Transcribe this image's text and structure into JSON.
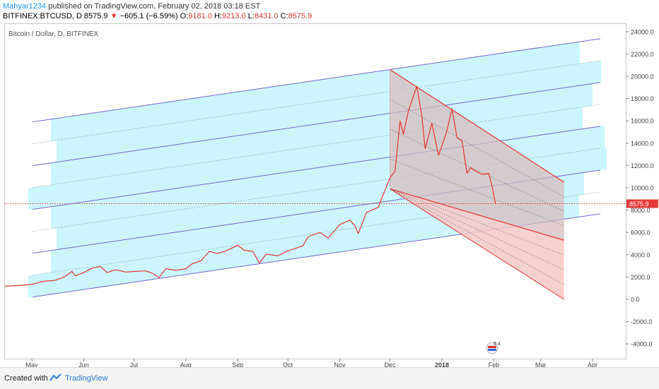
{
  "header": {
    "author": "Mahyar1234",
    "published": " published on TradingView.com, February 02, 2018 03:18 EST",
    "symbol": "BITFINEX:BTCUSD, D",
    "last": "8575.9",
    "arrow": "▼",
    "change": "−605.1 (−6.59%)",
    "o_label": "O:",
    "o": "9181.0",
    "h_label": "H:",
    "h": "9213.0",
    "l_label": "L:",
    "l": "8431.0",
    "c_label": "C:",
    "c": "8575.9"
  },
  "pane_title": "Bitcoin / Dollar, D, BITFINEX",
  "footer": {
    "created_with": "Created with",
    "brand": "TradingView"
  },
  "event_badge": "9 4",
  "colors": {
    "price": "#e53935",
    "up_channel_fill": "#ccf6fb",
    "up_channel_line": "#6a5acd",
    "down_channel_fill": "#f5c7c7",
    "down_channel_line": "#e53935",
    "price_line_label_bg": "#e53935"
  },
  "chart_data": {
    "type": "line",
    "series": [
      {
        "values_by_date": [
          [
            "2017-04-15",
            1180
          ],
          [
            "2017-04-25",
            1260
          ],
          [
            "2017-05-01",
            1350
          ],
          [
            "2017-05-08",
            1620
          ],
          [
            "2017-05-15",
            1700
          ],
          [
            "2017-05-20",
            1980
          ],
          [
            "2017-05-25",
            2500
          ],
          [
            "2017-05-27",
            2100
          ],
          [
            "2017-06-01",
            2400
          ],
          [
            "2017-06-06",
            2800
          ],
          [
            "2017-06-11",
            2950
          ],
          [
            "2017-06-15",
            2400
          ],
          [
            "2017-06-20",
            2650
          ],
          [
            "2017-06-26",
            2450
          ],
          [
            "2017-07-01",
            2500
          ],
          [
            "2017-07-08",
            2550
          ],
          [
            "2017-07-12",
            2350
          ],
          [
            "2017-07-16",
            1950
          ],
          [
            "2017-07-20",
            2750
          ],
          [
            "2017-07-26",
            2600
          ],
          [
            "2017-08-01",
            2750
          ],
          [
            "2017-08-05",
            3200
          ],
          [
            "2017-08-10",
            3450
          ],
          [
            "2017-08-15",
            4300
          ],
          [
            "2017-08-20",
            4100
          ],
          [
            "2017-08-25",
            4350
          ],
          [
            "2017-09-01",
            4850
          ],
          [
            "2017-09-05",
            4400
          ],
          [
            "2017-09-10",
            4300
          ],
          [
            "2017-09-14",
            3250
          ],
          [
            "2017-09-18",
            4050
          ],
          [
            "2017-09-25",
            3900
          ],
          [
            "2017-10-01",
            4350
          ],
          [
            "2017-10-10",
            4800
          ],
          [
            "2017-10-13",
            5600
          ],
          [
            "2017-10-20",
            6000
          ],
          [
            "2017-10-25",
            5500
          ],
          [
            "2017-11-01",
            6700
          ],
          [
            "2017-11-07",
            7100
          ],
          [
            "2017-11-10",
            6600
          ],
          [
            "2017-11-12",
            5900
          ],
          [
            "2017-11-17",
            7800
          ],
          [
            "2017-11-24",
            8250
          ],
          [
            "2017-11-28",
            9800
          ],
          [
            "2017-12-01",
            10900
          ],
          [
            "2017-12-04",
            11500
          ],
          [
            "2017-12-07",
            16000
          ],
          [
            "2017-12-09",
            14800
          ],
          [
            "2017-12-12",
            16900
          ],
          [
            "2017-12-17",
            19100
          ],
          [
            "2017-12-20",
            16500
          ],
          [
            "2017-12-22",
            13500
          ],
          [
            "2017-12-26",
            15800
          ],
          [
            "2017-12-30",
            12900
          ],
          [
            "2018-01-04",
            15100
          ],
          [
            "2018-01-07",
            17100
          ],
          [
            "2018-01-10",
            14500
          ],
          [
            "2018-01-13",
            14200
          ],
          [
            "2018-01-16",
            11300
          ],
          [
            "2018-01-18",
            11800
          ],
          [
            "2018-01-21",
            11500
          ],
          [
            "2018-01-25",
            11200
          ],
          [
            "2018-01-29",
            11300
          ],
          [
            "2018-01-31",
            10100
          ],
          [
            "2018-02-02",
            8575.9
          ]
        ]
      }
    ],
    "x_ticks": [
      "May",
      "Jun",
      "Jul",
      "Aug",
      "Sep",
      "Oct",
      "Nov",
      "Dec",
      "2018",
      "Feb",
      "Mar",
      "Apr"
    ],
    "y_ticks": [
      24000,
      22000,
      20000,
      18000,
      16000,
      14000,
      12000,
      10000,
      8000,
      6000,
      4000,
      2000,
      0,
      -2000,
      -4000
    ],
    "y_tick_labels": [
      "24000.0",
      "22000.0",
      "20000.0",
      "18000.0",
      "16000.0",
      "14000.0",
      "12000.0",
      "10000.0",
      "8000.0",
      "6000.0",
      "4000.0",
      "2000.0",
      "0.0",
      "-2000.0",
      "-4000.0"
    ],
    "ylim": [
      -5000,
      25000
    ],
    "last_price_label": "8575.9",
    "annotations": {
      "rising_channel": {
        "anchor_start_date": "2017-05-01",
        "anchor_end_date": "2018-03-20",
        "lower_start": 200,
        "lower_end": 7300,
        "upper_start": 15900,
        "upper_end": 23000,
        "levels": [
          0,
          0.125,
          0.25,
          0.375,
          0.5,
          0.625,
          0.75,
          0.875,
          1
        ]
      },
      "falling_channel": {
        "start_date": "2017-12-01",
        "end_date": "2018-03-15",
        "mid_start": 9900,
        "mid_end": 5300,
        "upper_start": 20600,
        "upper_end": 10500,
        "lower_start": 9900,
        "lower_end": 0
      }
    }
  }
}
